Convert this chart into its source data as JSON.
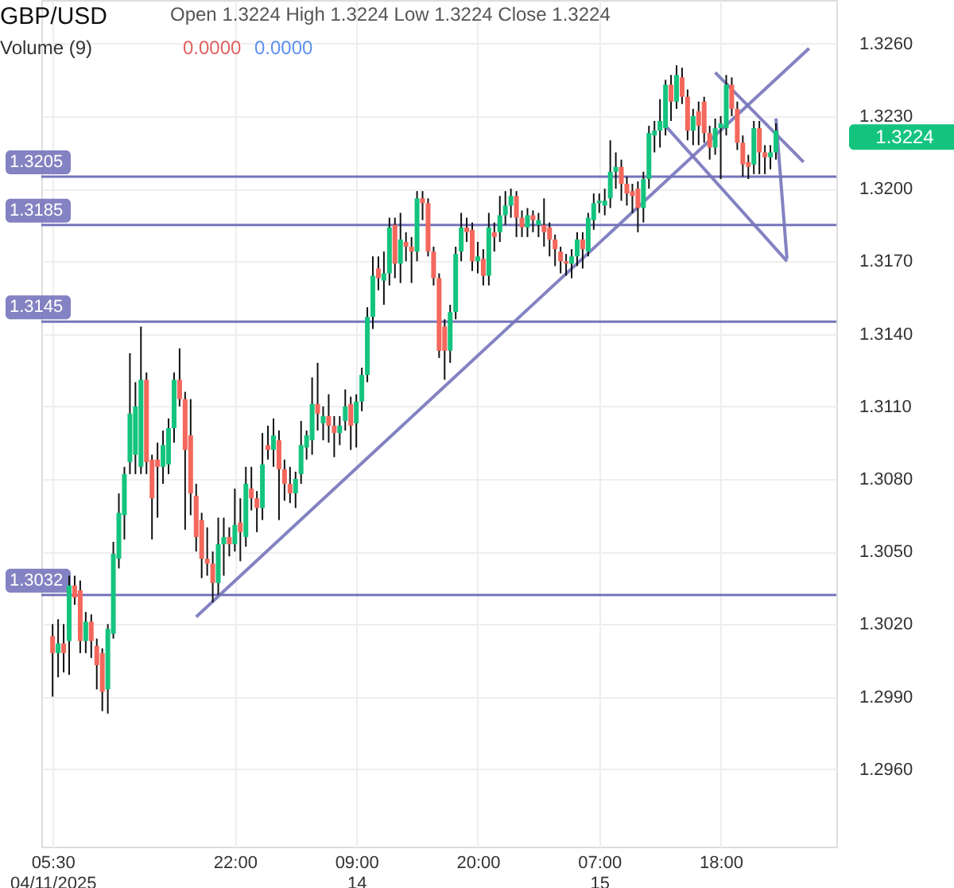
{
  "chart_data": {
    "type": "candlestick",
    "title": "GBP/USD",
    "subtitle": "Open 1.3224 High 1.3224 Low 1.3224 Close 1.3224",
    "annotations": [
      "Volume (9)",
      "0.0000",
      "0.0000",
      "1.3224"
    ],
    "colors": [
      "#f4675c",
      "#14c47e",
      "#f4675c",
      "#14c47e",
      "#f4675c",
      "#f4675c",
      "#14c47e",
      "#f4675c",
      "#f4675c",
      "#f4675c",
      "#14c47e",
      "#14c47e",
      "#14c47e",
      "#14c47e",
      "#14c47e",
      "#14c47e",
      "#14c47e",
      "#f4675c",
      "#f4675c",
      "#f4675c",
      "#14c47e",
      "#14c47e",
      "#14c47e",
      "#f4675c",
      "#f4675c",
      "#f4675c",
      "#f4675c",
      "#f4675c",
      "#f4675c",
      "#f4675c",
      "#14c47e",
      "#14c47e",
      "#f4675c",
      "#14c47e",
      "#f4675c",
      "#14c47e",
      "#f4675c",
      "#f4675c",
      "#14c47e",
      "#f4675c",
      "#14c47e",
      "#f4675c",
      "#f4675c",
      "#f4675c",
      "#14c47e",
      "#14c47e",
      "#14c47e",
      "#14c47e",
      "#f4675c",
      "#14c47e",
      "#f4675c",
      "#f4675c",
      "#14c47e",
      "#14c47e",
      "#f4675c",
      "#14c47e",
      "#14c47e",
      "#14c47e",
      "#14c47e",
      "#f4675c",
      "#14c47e",
      "#14c47e",
      "#f4675c",
      "#14c47e",
      "#f4675c",
      "#f4675c",
      "#14c47e",
      "#f4675c",
      "#f4675c",
      "#f4675c",
      "#f4675c",
      "#f4675c",
      "#14c47e",
      "#14c47e",
      "#14c47e",
      "#f4675c",
      "#f4675c",
      "#14c47e",
      "#f4675c",
      "#14c47e",
      "#f4675c",
      "#14c47e",
      "#14c47e",
      "#14c47e",
      "#f4675c",
      "#f4675c",
      "#14c47e",
      "#f4675c",
      "#14c47e",
      "#f4675c",
      "#f4675c",
      "#f4675c",
      "#f4675c",
      "#f4675c",
      "#14c47e",
      "#14c47e",
      "#f4675c",
      "#14c47e",
      "#14c47e",
      "#14c47e",
      "#14c47e",
      "#14c47e",
      "#14c47e",
      "#f4675c",
      "#f4675c",
      "#f4675c",
      "#f4675c",
      "#14c47e",
      "#14c47e",
      "#14c47e",
      "#14c47e",
      "#14c47e",
      "#f4675c",
      "#14c47e",
      "#f4675c",
      "#f4675c",
      "#14c47e",
      "#f4675c",
      "#f4675c",
      "#f4675c",
      "#14c47e",
      "#14c47e",
      "#14c47e",
      "#f4675c",
      "#f4675c",
      "#f4675c",
      "#f4675c",
      "#14c47e",
      "#f4675c",
      "#f4675c",
      "#14c47e",
      "#14c47e",
      null,
      null,
      null,
      null,
      null,
      null,
      null,
      null,
      null
    ],
    "categories": [
      "05:30\n04/11/2025",
      null,
      null,
      null,
      null,
      null,
      null,
      null,
      null,
      null,
      null,
      null,
      null,
      null,
      null,
      null,
      null,
      null,
      null,
      null,
      null,
      null,
      null,
      null,
      null,
      null,
      null,
      null,
      null,
      null,
      null,
      null,
      null,
      "22:00",
      null,
      null,
      null,
      null,
      null,
      null,
      null,
      null,
      null,
      null,
      null,
      null,
      null,
      null,
      null,
      null,
      null,
      null,
      null,
      null,
      null,
      "09:00\n14",
      null,
      null,
      null,
      null,
      null,
      null,
      null,
      null,
      null,
      null,
      null,
      null,
      null,
      null,
      null,
      null,
      null,
      null,
      null,
      null,
      null,
      "20:00",
      null,
      null,
      null,
      null,
      null,
      null,
      null,
      null,
      null,
      null,
      null,
      null,
      null,
      null,
      null,
      null,
      null,
      null,
      null,
      null,
      null,
      "07:00\n15",
      null,
      null,
      null,
      null,
      null,
      null,
      null,
      null,
      null,
      null,
      null,
      null,
      null,
      null,
      null,
      null,
      null,
      null,
      null,
      null,
      null,
      "18:00",
      null,
      null,
      null,
      null,
      null,
      null,
      null,
      null,
      null,
      null,
      null,
      null,
      null,
      null,
      null,
      null,
      null,
      null,
      null
    ],
    "ohlc": [
      [
        1.3015,
        1.302,
        1.299,
        1.3008
      ],
      [
        1.3008,
        1.3022,
        1.2998,
        1.3012
      ],
      [
        1.3012,
        1.302,
        1.3,
        1.3008
      ],
      [
        1.3013,
        1.304,
        1.2999,
        1.3036
      ],
      [
        1.3036,
        1.304,
        1.3028,
        1.3031
      ],
      [
        1.3034,
        1.3038,
        1.3008,
        1.3013
      ],
      [
        1.3013,
        1.3025,
        1.3008,
        1.3021
      ],
      [
        1.3021,
        1.3024,
        1.3006,
        1.3013
      ],
      [
        1.3011,
        1.3014,
        1.2993,
        1.3003
      ],
      [
        1.3008,
        1.301,
        1.2984,
        1.2992
      ],
      [
        1.2993,
        1.302,
        1.2983,
        1.3018
      ],
      [
        1.3016,
        1.3054,
        1.3014,
        1.3049
      ],
      [
        1.3047,
        1.3074,
        1.3043,
        1.3066
      ],
      [
        1.3065,
        1.3085,
        1.3055,
        1.3082
      ],
      [
        1.3087,
        1.3132,
        1.3082,
        1.3107
      ],
      [
        1.309,
        1.312,
        1.3082,
        1.311
      ],
      [
        1.3085,
        1.3143,
        1.3082,
        1.3121
      ],
      [
        1.3121,
        1.3124,
        1.3082,
        1.3087
      ],
      [
        1.3088,
        1.309,
        1.3055,
        1.3072
      ],
      [
        1.3088,
        1.3095,
        1.3064,
        1.3085
      ],
      [
        1.3085,
        1.31,
        1.3078,
        1.3094
      ],
      [
        1.3086,
        1.3105,
        1.3082,
        1.3101
      ],
      [
        1.3101,
        1.3124,
        1.3095,
        1.3121
      ],
      [
        1.3121,
        1.3134,
        1.311,
        1.3113
      ],
      [
        1.3113,
        1.3116,
        1.3059,
        1.3092
      ],
      [
        1.3098,
        1.3113,
        1.3065,
        1.3074
      ],
      [
        1.3073,
        1.3078,
        1.305,
        1.3056
      ],
      [
        1.3063,
        1.3066,
        1.3039,
        1.3047
      ],
      [
        1.3047,
        1.306,
        1.304,
        1.3045
      ],
      [
        1.3045,
        1.305,
        1.3029,
        1.3037
      ],
      [
        1.3037,
        1.3064,
        1.3032,
        1.3053
      ],
      [
        1.3053,
        1.3064,
        1.304,
        1.3056
      ],
      [
        1.3056,
        1.306,
        1.3048,
        1.3053
      ],
      [
        1.3053,
        1.3076,
        1.305,
        1.3061
      ],
      [
        1.3062,
        1.3072,
        1.3046,
        1.3058
      ],
      [
        1.3056,
        1.3085,
        1.3052,
        1.3078
      ],
      [
        1.3076,
        1.3085,
        1.3067,
        1.3072
      ],
      [
        1.3072,
        1.3075,
        1.3058,
        1.3068
      ],
      [
        1.3068,
        1.3099,
        1.3063,
        1.3086
      ],
      [
        1.3094,
        1.3102,
        1.3088,
        1.3092
      ],
      [
        1.3092,
        1.3105,
        1.3085,
        1.3098
      ],
      [
        1.3096,
        1.31,
        1.3063,
        1.3084
      ],
      [
        1.3084,
        1.3088,
        1.3071,
        1.3078
      ],
      [
        1.3078,
        1.3085,
        1.307,
        1.3074
      ],
      [
        1.3074,
        1.3083,
        1.3068,
        1.308
      ],
      [
        1.3082,
        1.3104,
        1.3078,
        1.3094
      ],
      [
        1.3093,
        1.31,
        1.3088,
        1.3098
      ],
      [
        1.3096,
        1.3122,
        1.309,
        1.3111
      ],
      [
        1.3111,
        1.3128,
        1.31,
        1.3107
      ],
      [
        1.3103,
        1.311,
        1.3096,
        1.3106
      ],
      [
        1.3106,
        1.3115,
        1.3095,
        1.3102
      ],
      [
        1.3102,
        1.3106,
        1.3089,
        1.3099
      ],
      [
        1.3099,
        1.3106,
        1.3094,
        1.3102
      ],
      [
        1.3104,
        1.3117,
        1.31,
        1.311
      ],
      [
        1.3111,
        1.3114,
        1.3092,
        1.3102
      ],
      [
        1.3103,
        1.3115,
        1.3093,
        1.3112
      ],
      [
        1.3112,
        1.3126,
        1.3108,
        1.3123
      ],
      [
        1.3123,
        1.3151,
        1.312,
        1.3147
      ],
      [
        1.3147,
        1.3172,
        1.3142,
        1.3164
      ],
      [
        1.3167,
        1.3172,
        1.3158,
        1.3163
      ],
      [
        1.3162,
        1.3174,
        1.3152,
        1.3165
      ],
      [
        1.3165,
        1.3188,
        1.316,
        1.3184
      ],
      [
        1.3185,
        1.3188,
        1.3163,
        1.3169
      ],
      [
        1.3169,
        1.319,
        1.3161,
        1.3179
      ],
      [
        1.3178,
        1.3182,
        1.317,
        1.3176
      ],
      [
        1.3176,
        1.318,
        1.3161,
        1.3174
      ],
      [
        1.3174,
        1.3199,
        1.317,
        1.3196
      ],
      [
        1.3196,
        1.3199,
        1.3187,
        1.3194
      ],
      [
        1.3194,
        1.3196,
        1.3172,
        1.3174
      ],
      [
        1.3174,
        1.3176,
        1.316,
        1.3163
      ],
      [
        1.3163,
        1.3165,
        1.313,
        1.3133
      ],
      [
        1.3143,
        1.3146,
        1.3121,
        1.3133
      ],
      [
        1.3133,
        1.3152,
        1.3128,
        1.3149
      ],
      [
        1.3149,
        1.3176,
        1.3146,
        1.3173
      ],
      [
        1.3174,
        1.319,
        1.317,
        1.3184
      ],
      [
        1.3184,
        1.3188,
        1.3178,
        1.3182
      ],
      [
        1.3183,
        1.3186,
        1.3166,
        1.317
      ],
      [
        1.317,
        1.3178,
        1.3165,
        1.3172
      ],
      [
        1.3171,
        1.3175,
        1.316,
        1.3164
      ],
      [
        1.3164,
        1.319,
        1.316,
        1.3184
      ],
      [
        1.3182,
        1.3186,
        1.3174,
        1.318
      ],
      [
        1.3182,
        1.3197,
        1.3178,
        1.3189
      ],
      [
        1.3189,
        1.3199,
        1.3185,
        1.3193
      ],
      [
        1.3193,
        1.32,
        1.3188,
        1.3197
      ],
      [
        1.3197,
        1.3199,
        1.318,
        1.3188
      ],
      [
        1.3188,
        1.3191,
        1.318,
        1.3184
      ],
      [
        1.3184,
        1.3192,
        1.318,
        1.3189
      ],
      [
        1.3189,
        1.3191,
        1.3182,
        1.3187
      ],
      [
        1.3185,
        1.319,
        1.318,
        1.3187
      ],
      [
        1.3185,
        1.3196,
        1.3176,
        1.3182
      ],
      [
        1.3184,
        1.3186,
        1.3172,
        1.3179
      ],
      [
        1.3179,
        1.3181,
        1.3168,
        1.3175
      ],
      [
        1.3174,
        1.3176,
        1.3165,
        1.317
      ],
      [
        1.317,
        1.3173,
        1.3164,
        1.3169
      ],
      [
        1.3169,
        1.3175,
        1.3163,
        1.3172
      ],
      [
        1.3172,
        1.3182,
        1.3168,
        1.3179
      ],
      [
        1.3179,
        1.3182,
        1.3167,
        1.3175
      ],
      [
        1.3174,
        1.319,
        1.3172,
        1.3188
      ],
      [
        1.3187,
        1.3198,
        1.3183,
        1.3194
      ],
      [
        1.3194,
        1.3198,
        1.319,
        1.3195
      ],
      [
        1.3193,
        1.32,
        1.3189,
        1.3195
      ],
      [
        1.3196,
        1.322,
        1.3192,
        1.3207
      ],
      [
        1.3207,
        1.3215,
        1.32,
        1.3209
      ],
      [
        1.3209,
        1.3212,
        1.3195,
        1.3202
      ],
      [
        1.3202,
        1.3205,
        1.3193,
        1.3198
      ],
      [
        1.3199,
        1.3202,
        1.319,
        1.3197
      ],
      [
        1.32,
        1.3203,
        1.3182,
        1.3192
      ],
      [
        1.3192,
        1.3207,
        1.3186,
        1.3204
      ],
      [
        1.3204,
        1.3226,
        1.32,
        1.3223
      ],
      [
        1.3222,
        1.3228,
        1.3215,
        1.3224
      ],
      [
        1.3224,
        1.3237,
        1.3217,
        1.3228
      ],
      [
        1.3225,
        1.3245,
        1.3222,
        1.3243
      ],
      [
        1.3243,
        1.3247,
        1.3228,
        1.3236
      ],
      [
        1.3236,
        1.3251,
        1.3233,
        1.3247
      ],
      [
        1.3246,
        1.325,
        1.3235,
        1.3238
      ],
      [
        1.3238,
        1.3241,
        1.322,
        1.3224
      ],
      [
        1.3224,
        1.3233,
        1.3218,
        1.323
      ],
      [
        1.3232,
        1.3236,
        1.3218,
        1.3226
      ],
      [
        1.3236,
        1.3238,
        1.3219,
        1.3223
      ],
      [
        1.3223,
        1.3226,
        1.3212,
        1.3217
      ],
      [
        1.3217,
        1.3229,
        1.3214,
        1.3225
      ],
      [
        1.3225,
        1.323,
        1.3204,
        1.3227
      ],
      [
        1.3225,
        1.3247,
        1.3222,
        1.3243
      ],
      [
        1.3243,
        1.3246,
        1.323,
        1.3233
      ],
      [
        1.3233,
        1.3236,
        1.3216,
        1.3219
      ],
      [
        1.3219,
        1.3222,
        1.3205,
        1.321
      ],
      [
        1.3211,
        1.3214,
        1.3204,
        1.3209
      ],
      [
        1.321,
        1.3228,
        1.3206,
        1.3225
      ],
      [
        1.3225,
        1.3228,
        1.3206,
        1.3215
      ],
      [
        1.3215,
        1.3218,
        1.3206,
        1.3213
      ],
      [
        1.3213,
        1.3218,
        1.3208,
        1.3215
      ],
      [
        1.3215,
        1.3227,
        1.3212,
        1.3224
      ],
      null,
      null,
      null,
      null,
      null,
      null,
      null,
      null,
      null
    ],
    "series": [
      {
        "type": "line",
        "color": "#7574bb",
        "values": [
          null,
          null,
          null,
          null,
          null,
          null,
          null,
          null,
          null,
          null,
          null,
          null,
          null,
          null,
          null,
          null,
          null,
          null,
          null,
          null,
          null,
          null,
          null,
          null,
          null,
          null,
          1.3023,
          null,
          null,
          null,
          null,
          null,
          null,
          null,
          null,
          null,
          null,
          null,
          null,
          null,
          null,
          null,
          null,
          null,
          null,
          null,
          null,
          null,
          null,
          null,
          null,
          null,
          null,
          null,
          null,
          null,
          null,
          null,
          null,
          null,
          null,
          null,
          null,
          null,
          null,
          null,
          null,
          null,
          null,
          null,
          null,
          null,
          null,
          null,
          null,
          null,
          null,
          null,
          null,
          null,
          null,
          null,
          null,
          null,
          null,
          null,
          null,
          null,
          null,
          null,
          null,
          null,
          null,
          null,
          null,
          null,
          null,
          null,
          null,
          null,
          null,
          null,
          null,
          null,
          null,
          null,
          null,
          null,
          null,
          null,
          null,
          null,
          null,
          null,
          null,
          null,
          null,
          null,
          null,
          null,
          null,
          null,
          null,
          null,
          null,
          null,
          null,
          null,
          null,
          null,
          null,
          null,
          null,
          null,
          null,
          null,
          null,
          1.3258,
          null,
          null,
          null
        ]
      },
      {
        "type": "line",
        "color": "#7574bb",
        "values": [
          null,
          null,
          null,
          null,
          null,
          null,
          null,
          null,
          null,
          null,
          null,
          null,
          null,
          null,
          null,
          null,
          null,
          null,
          null,
          null,
          null,
          null,
          null,
          null,
          null,
          null,
          null,
          null,
          null,
          null,
          null,
          null,
          null,
          null,
          null,
          null,
          null,
          null,
          null,
          null,
          null,
          null,
          null,
          null,
          null,
          null,
          null,
          null,
          null,
          null,
          null,
          null,
          null,
          null,
          null,
          null,
          null,
          null,
          null,
          null,
          null,
          null,
          null,
          null,
          null,
          null,
          null,
          null,
          null,
          null,
          null,
          null,
          null,
          null,
          null,
          null,
          null,
          null,
          null,
          null,
          null,
          null,
          null,
          null,
          null,
          null,
          null,
          null,
          null,
          null,
          null,
          null,
          null,
          null,
          null,
          null,
          null,
          null,
          null,
          null,
          null,
          null,
          null,
          null,
          null,
          null,
          null,
          null,
          null,
          null,
          null,
          null,
          null,
          null,
          null,
          null,
          null,
          null,
          null,
          null,
          1.3248,
          null,
          null,
          null,
          null,
          null,
          null,
          null,
          null,
          null,
          null,
          null,
          null,
          null,
          null,
          null,
          1.3211,
          null,
          null,
          null,
          null
        ]
      },
      {
        "type": "line",
        "color": "#7574bb",
        "values": [
          null,
          null,
          null,
          null,
          null,
          null,
          null,
          null,
          null,
          null,
          null,
          null,
          null,
          null,
          null,
          null,
          null,
          null,
          null,
          null,
          null,
          null,
          null,
          null,
          null,
          null,
          null,
          null,
          null,
          null,
          null,
          null,
          null,
          null,
          null,
          null,
          null,
          null,
          null,
          null,
          null,
          null,
          null,
          null,
          null,
          null,
          null,
          null,
          null,
          null,
          null,
          null,
          null,
          null,
          null,
          null,
          null,
          null,
          null,
          null,
          null,
          null,
          null,
          null,
          null,
          null,
          null,
          null,
          null,
          null,
          null,
          null,
          null,
          null,
          null,
          null,
          null,
          null,
          null,
          null,
          null,
          null,
          null,
          null,
          null,
          null,
          null,
          null,
          null,
          null,
          null,
          null,
          null,
          null,
          null,
          null,
          null,
          null,
          null,
          null,
          null,
          null,
          null,
          null,
          null,
          null,
          null,
          null,
          null,
          null,
          null,
          1.3226,
          null,
          null,
          null,
          null,
          null,
          null,
          null,
          null,
          null,
          null,
          null,
          null,
          null,
          null,
          null,
          null,
          null,
          null,
          null,
          null,
          null,
          1.317,
          null,
          null,
          null,
          null,
          null,
          null,
          null
        ]
      },
      {
        "type": "line",
        "color": "#7574bb",
        "values": [
          null,
          null,
          null,
          null,
          null,
          null,
          null,
          null,
          null,
          null,
          null,
          null,
          null,
          null,
          null,
          null,
          null,
          null,
          null,
          null,
          null,
          null,
          null,
          null,
          null,
          null,
          null,
          null,
          null,
          null,
          null,
          null,
          null,
          null,
          null,
          null,
          null,
          null,
          null,
          null,
          null,
          null,
          null,
          null,
          null,
          null,
          null,
          null,
          null,
          null,
          null,
          null,
          null,
          null,
          null,
          null,
          null,
          null,
          null,
          null,
          null,
          null,
          null,
          null,
          null,
          null,
          null,
          null,
          null,
          null,
          null,
          null,
          null,
          null,
          null,
          null,
          null,
          null,
          null,
          null,
          null,
          null,
          null,
          null,
          null,
          null,
          null,
          null,
          null,
          null,
          null,
          null,
          null,
          null,
          null,
          null,
          null,
          null,
          null,
          null,
          null,
          null,
          null,
          null,
          null,
          null,
          null,
          null,
          null,
          null,
          null,
          null,
          null,
          null,
          null,
          null,
          null,
          null,
          null,
          null,
          null,
          null,
          null,
          null,
          null,
          null,
          null,
          null,
          null,
          null,
          null,
          1.3229,
          null,
          1.3171,
          null,
          null,
          null,
          null,
          null,
          null,
          null
        ]
      }
    ],
    "ref_lines": [
      {
        "axis": "y",
        "value": 1.3205,
        "label": "1.3205",
        "color": "#7574bb"
      },
      {
        "axis": "y",
        "value": 1.3185,
        "label": "1.3185",
        "color": "#7574bb"
      },
      {
        "axis": "y",
        "value": 1.3145,
        "label": "1.3145",
        "color": "#7574bb"
      },
      {
        "axis": "y",
        "value": 1.3032,
        "label": "1.3032",
        "color": "#7574bb"
      }
    ],
    "ylim": [
      1.2928,
      1.3278
    ],
    "yticks": [
      {
        "value": 1.296,
        "label": "1.2960"
      },
      {
        "value": 1.299,
        "label": "1.2990"
      },
      {
        "value": 1.302,
        "label": "1.3020"
      },
      {
        "value": 1.305,
        "label": "1.3050"
      },
      {
        "value": 1.308,
        "label": "1.3080"
      },
      {
        "value": 1.311,
        "label": "1.3110"
      },
      {
        "value": 1.314,
        "label": "1.3140"
      },
      {
        "value": 1.317,
        "label": "1.3170"
      },
      {
        "value": 1.32,
        "label": "1.3200"
      },
      {
        "value": 1.323,
        "label": "1.3230"
      },
      {
        "value": 1.326,
        "label": "1.3260"
      }
    ],
    "grid": true
  }
}
